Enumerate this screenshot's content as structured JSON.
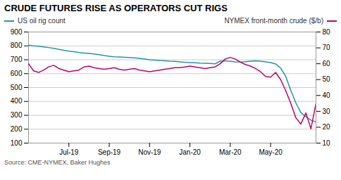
{
  "chart_data": {
    "type": "line",
    "title": "CRUDE FUTURES RISE AS OPERATORS CUT RIGS",
    "source": "Source: CME-NYMEX, Baker Hughes",
    "x": [
      0,
      1,
      2,
      3,
      4,
      5,
      6,
      7,
      8,
      9,
      10,
      11,
      12,
      13,
      14,
      15,
      16,
      17,
      18,
      19,
      20,
      21,
      22,
      23,
      24,
      25,
      26,
      27,
      28,
      29,
      30,
      31,
      32,
      33,
      34,
      35,
      36,
      37,
      38,
      39,
      40,
      41,
      42,
      43,
      44,
      45,
      46,
      47,
      48,
      49,
      50,
      51,
      52,
      53,
      54,
      55,
      56,
      57
    ],
    "series": [
      {
        "name": "US oil rig count",
        "color": "#2196a8",
        "axis": "y",
        "values": [
          805,
          800,
          798,
          793,
          788,
          782,
          775,
          768,
          762,
          758,
          752,
          748,
          745,
          742,
          737,
          730,
          725,
          722,
          720,
          718,
          716,
          714,
          710,
          706,
          700,
          698,
          695,
          693,
          690,
          688,
          685,
          682,
          680,
          678,
          676,
          675,
          673,
          671,
          690,
          693,
          688,
          685,
          683,
          686,
          690,
          693,
          690,
          685,
          680,
          670,
          640,
          580,
          480,
          390,
          320,
          290,
          265,
          252
        ]
      },
      {
        "name": "NYMEX front-month crude ($/b)",
        "color": "#c0006e",
        "axis": "y2",
        "values": [
          60,
          55.5,
          54.5,
          56,
          58,
          59,
          57,
          56,
          55,
          55.5,
          56,
          58,
          58.5,
          57.5,
          57,
          56.5,
          57,
          57.5,
          56.5,
          56,
          56.5,
          57,
          56,
          55.5,
          55,
          55.5,
          56,
          56.5,
          57,
          57.5,
          57.5,
          58,
          58.5,
          58,
          57.5,
          57,
          57.5,
          58,
          60,
          63,
          64,
          63,
          61,
          59.5,
          58.5,
          57,
          55,
          52,
          51.5,
          54.5,
          50,
          43,
          35,
          26,
          22,
          29,
          19,
          35
        ]
      }
    ],
    "xlim": [
      0,
      57
    ],
    "xticks": [
      {
        "value": 8,
        "label": "Jul-19"
      },
      {
        "value": 16,
        "label": "Sep-19"
      },
      {
        "value": 24,
        "label": "Nov-19"
      },
      {
        "value": 32,
        "label": "Jan-20"
      },
      {
        "value": 40,
        "label": "Mar-20"
      },
      {
        "value": 48,
        "label": "May-20"
      }
    ],
    "ylim": [
      100,
      900
    ],
    "yticks": [
      100,
      200,
      300,
      400,
      500,
      600,
      700,
      800,
      900
    ],
    "y2lim": [
      10,
      80
    ],
    "y2ticks": [
      10,
      20,
      30,
      40,
      50,
      60,
      70,
      80
    ],
    "grid": true,
    "legend": "top"
  }
}
